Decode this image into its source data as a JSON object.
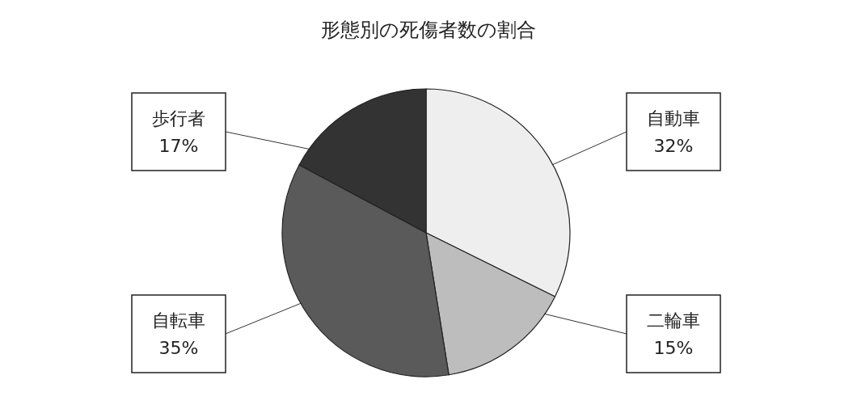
{
  "chart_data": {
    "type": "pie",
    "title": "形態別の死傷者数の割合",
    "categories": [
      "自動車",
      "二輪車",
      "自転車",
      "歩行者"
    ],
    "values": [
      32,
      15,
      35,
      17
    ],
    "value_labels": [
      "32%",
      "15%",
      "35%",
      "17%"
    ],
    "colors": [
      "#eeeeee",
      "#bdbdbd",
      "#5a5a5a",
      "#333333"
    ],
    "legend": false
  }
}
